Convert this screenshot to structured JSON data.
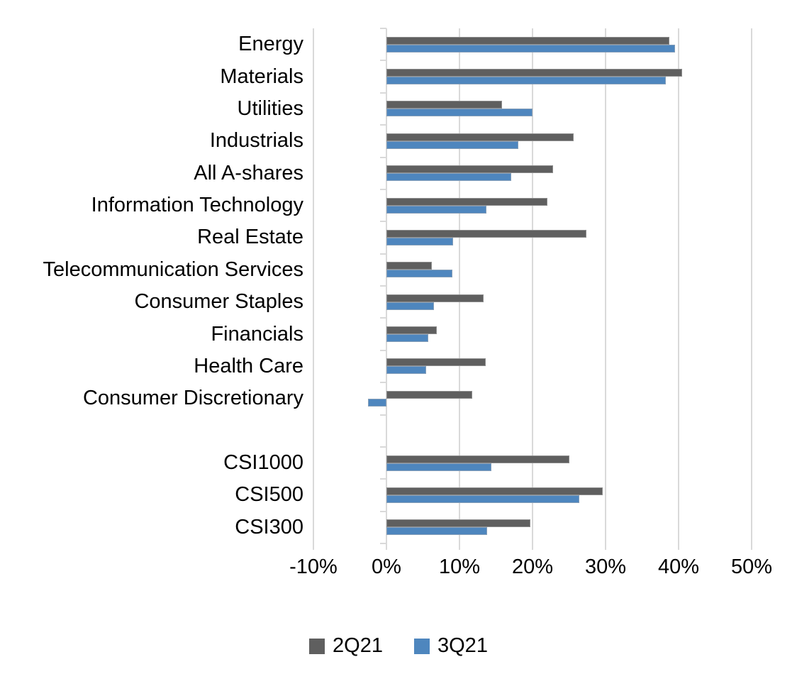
{
  "chart_data": {
    "type": "bar",
    "orientation": "horizontal",
    "title": "",
    "value_unit": "%",
    "categories": [
      "Energy",
      "Materials",
      "Utilities",
      "Industrials",
      "All A-shares",
      "Information Technology",
      "Real Estate",
      "Telecommunication Services",
      "Consumer Staples",
      "Financials",
      "Health Care",
      "Consumer Discretionary",
      "",
      "CSI1000",
      "CSI500",
      "CSI300"
    ],
    "series": [
      {
        "name": "2Q21",
        "color": "#5F5F5F",
        "values": [
          38.7,
          40.5,
          15.8,
          25.6,
          22.8,
          22.0,
          27.4,
          6.2,
          13.3,
          6.9,
          13.6,
          11.7,
          null,
          25.0,
          29.6,
          19.7
        ]
      },
      {
        "name": "3Q21",
        "color": "#4E86BE",
        "values": [
          39.5,
          38.3,
          20.0,
          18.1,
          17.1,
          13.7,
          9.1,
          9.0,
          6.5,
          5.7,
          5.4,
          -2.5,
          null,
          14.4,
          26.4,
          13.8
        ]
      }
    ],
    "xlim": [
      -10,
      50
    ],
    "xticks": [
      {
        "value": -10,
        "label": "-10%"
      },
      {
        "value": 0,
        "label": "0%"
      },
      {
        "value": 10,
        "label": "10%"
      },
      {
        "value": 20,
        "label": "20%"
      },
      {
        "value": 30,
        "label": "30%"
      },
      {
        "value": 40,
        "label": "40%"
      },
      {
        "value": 50,
        "label": "50%"
      }
    ],
    "grid": true,
    "legend_position": "bottom",
    "legend_entries": [
      "2Q21",
      "3Q21"
    ],
    "colors": {
      "gridline": "#D9D9D9",
      "axis": "#D9D9D9",
      "text": "#000000",
      "background": "#FFFFFF"
    }
  }
}
